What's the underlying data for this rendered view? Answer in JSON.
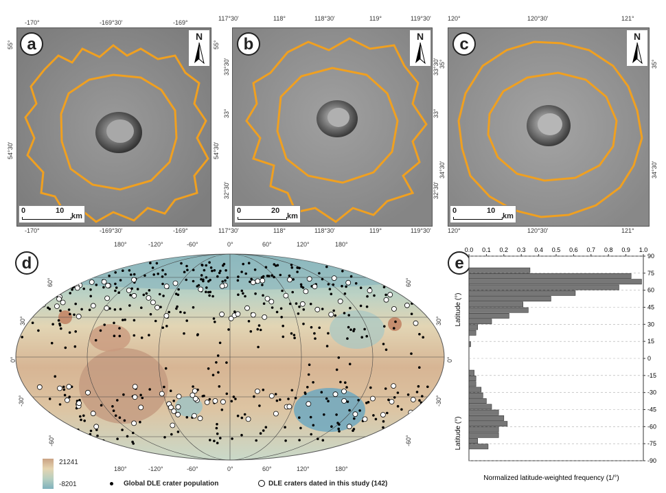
{
  "panels": {
    "a": {
      "letter": "a",
      "top_ticks": [
        "-170°",
        "-169°30'",
        "-169°"
      ],
      "bottom_ticks": [
        "-170°",
        "-169°30'",
        "-169°"
      ],
      "left_ticks": [
        "55°",
        "54°30'"
      ],
      "right_ticks": [
        "55°",
        "54°30'"
      ],
      "scale": {
        "start": "0",
        "mid": "10",
        "unit": "km"
      },
      "north": "N"
    },
    "b": {
      "letter": "b",
      "top_ticks": [
        "117°30'",
        "118°",
        "118°30'",
        "119°",
        "119°30'"
      ],
      "bottom_ticks": [
        "117°30'",
        "118°",
        "118°30'",
        "119°",
        "119°30'"
      ],
      "left_ticks": [
        "33°30'",
        "33°",
        "32°30'"
      ],
      "right_ticks": [
        "33°30'",
        "33°",
        "32°30'"
      ],
      "scale": {
        "start": "0",
        "mid": "20",
        "unit": "km"
      },
      "north": "N"
    },
    "c": {
      "letter": "c",
      "top_ticks": [
        "120°",
        "120°30'",
        "121°"
      ],
      "bottom_ticks": [
        "120°",
        "120°30'",
        "121°"
      ],
      "left_ticks": [
        "35°",
        "34°30'"
      ],
      "right_ticks": [
        "35°",
        "34°30'"
      ],
      "scale": {
        "start": "0",
        "mid": "10",
        "unit": "km"
      },
      "north": "N"
    }
  },
  "map_d": {
    "letter": "d",
    "top_ticks": [
      "180°",
      "-120°",
      "-60°",
      "0°",
      "60°",
      "120°",
      "180°"
    ],
    "bottom_ticks": [
      "180°",
      "-120°",
      "-60°",
      "0°",
      "60°",
      "120°",
      "180°"
    ],
    "left_ticks": [
      "60°",
      "30°",
      "0°",
      "-30°",
      "-60°"
    ],
    "right_ticks": [
      "60°",
      "30°",
      "0°",
      "-30°",
      "-60°"
    ],
    "colorbar": {
      "max": "21241",
      "min": "-8201"
    },
    "legend": {
      "global": "Global DLE crater population",
      "dated": "DLE craters dated in this study (142)"
    }
  },
  "chart_e": {
    "letter": "e"
  },
  "chart_data": {
    "type": "bar",
    "orientation": "horizontal",
    "xlabel": "Normalized latitude-weighted frequency (1/°)",
    "ylabel": "Latitude (°)",
    "xlim": [
      0,
      1.0
    ],
    "ylim": [
      -90,
      90
    ],
    "xticks": [
      "0.0",
      "0.1",
      "0.2",
      "0.3",
      "0.4",
      "0.5",
      "0.6",
      "0.7",
      "0.8",
      "0.9",
      "1.0"
    ],
    "yticks": [
      "90",
      "75",
      "60",
      "45",
      "30",
      "15",
      "0",
      "-15",
      "-30",
      "-45",
      "-60",
      "-75",
      "-90"
    ],
    "bin_centers": [
      77.5,
      72.5,
      67.5,
      62.5,
      57.5,
      52.5,
      47.5,
      42.5,
      37.5,
      32.5,
      27.5,
      22.5,
      17.5,
      12.5,
      7.5,
      2.5,
      -2.5,
      -7.5,
      -12.5,
      -17.5,
      -22.5,
      -27.5,
      -32.5,
      -37.5,
      -42.5,
      -47.5,
      -52.5,
      -57.5,
      -62.5,
      -67.5,
      -72.5,
      -77.5
    ],
    "values": [
      0.35,
      0.93,
      0.99,
      0.86,
      0.61,
      0.47,
      0.31,
      0.34,
      0.23,
      0.13,
      0.05,
      0.04,
      0.0,
      0.01,
      0.0,
      0.0,
      0.0,
      0.0,
      0.03,
      0.04,
      0.04,
      0.07,
      0.08,
      0.1,
      0.13,
      0.17,
      0.2,
      0.22,
      0.17,
      0.17,
      0.05,
      0.11
    ],
    "grid": "dashed horizontal"
  }
}
